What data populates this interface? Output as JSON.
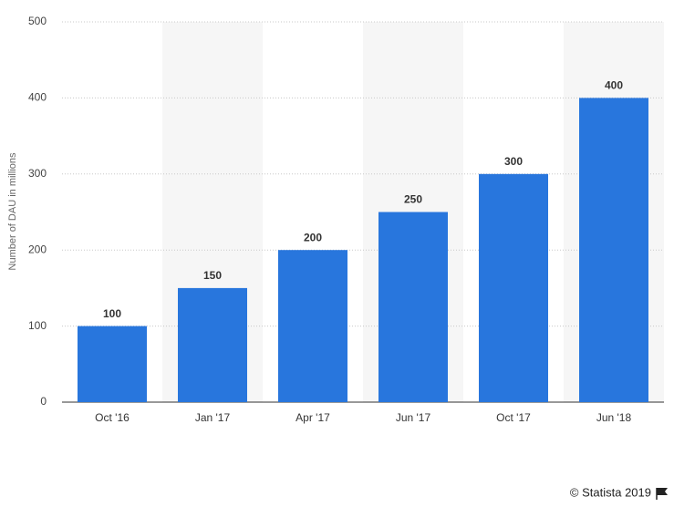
{
  "chart_data": {
    "type": "bar",
    "ylabel": "Number of DAU in millions",
    "categories": [
      "Oct '16",
      "Jan '17",
      "Apr '17",
      "Jun '17",
      "Oct '17",
      "Jun '18"
    ],
    "values": [
      100,
      150,
      200,
      250,
      300,
      400
    ],
    "color": "#2876dd",
    "ylim": [
      0,
      500
    ],
    "yticks": [
      0,
      100,
      200,
      300,
      400,
      500
    ],
    "grid": true,
    "source": "© Statista 2019"
  }
}
